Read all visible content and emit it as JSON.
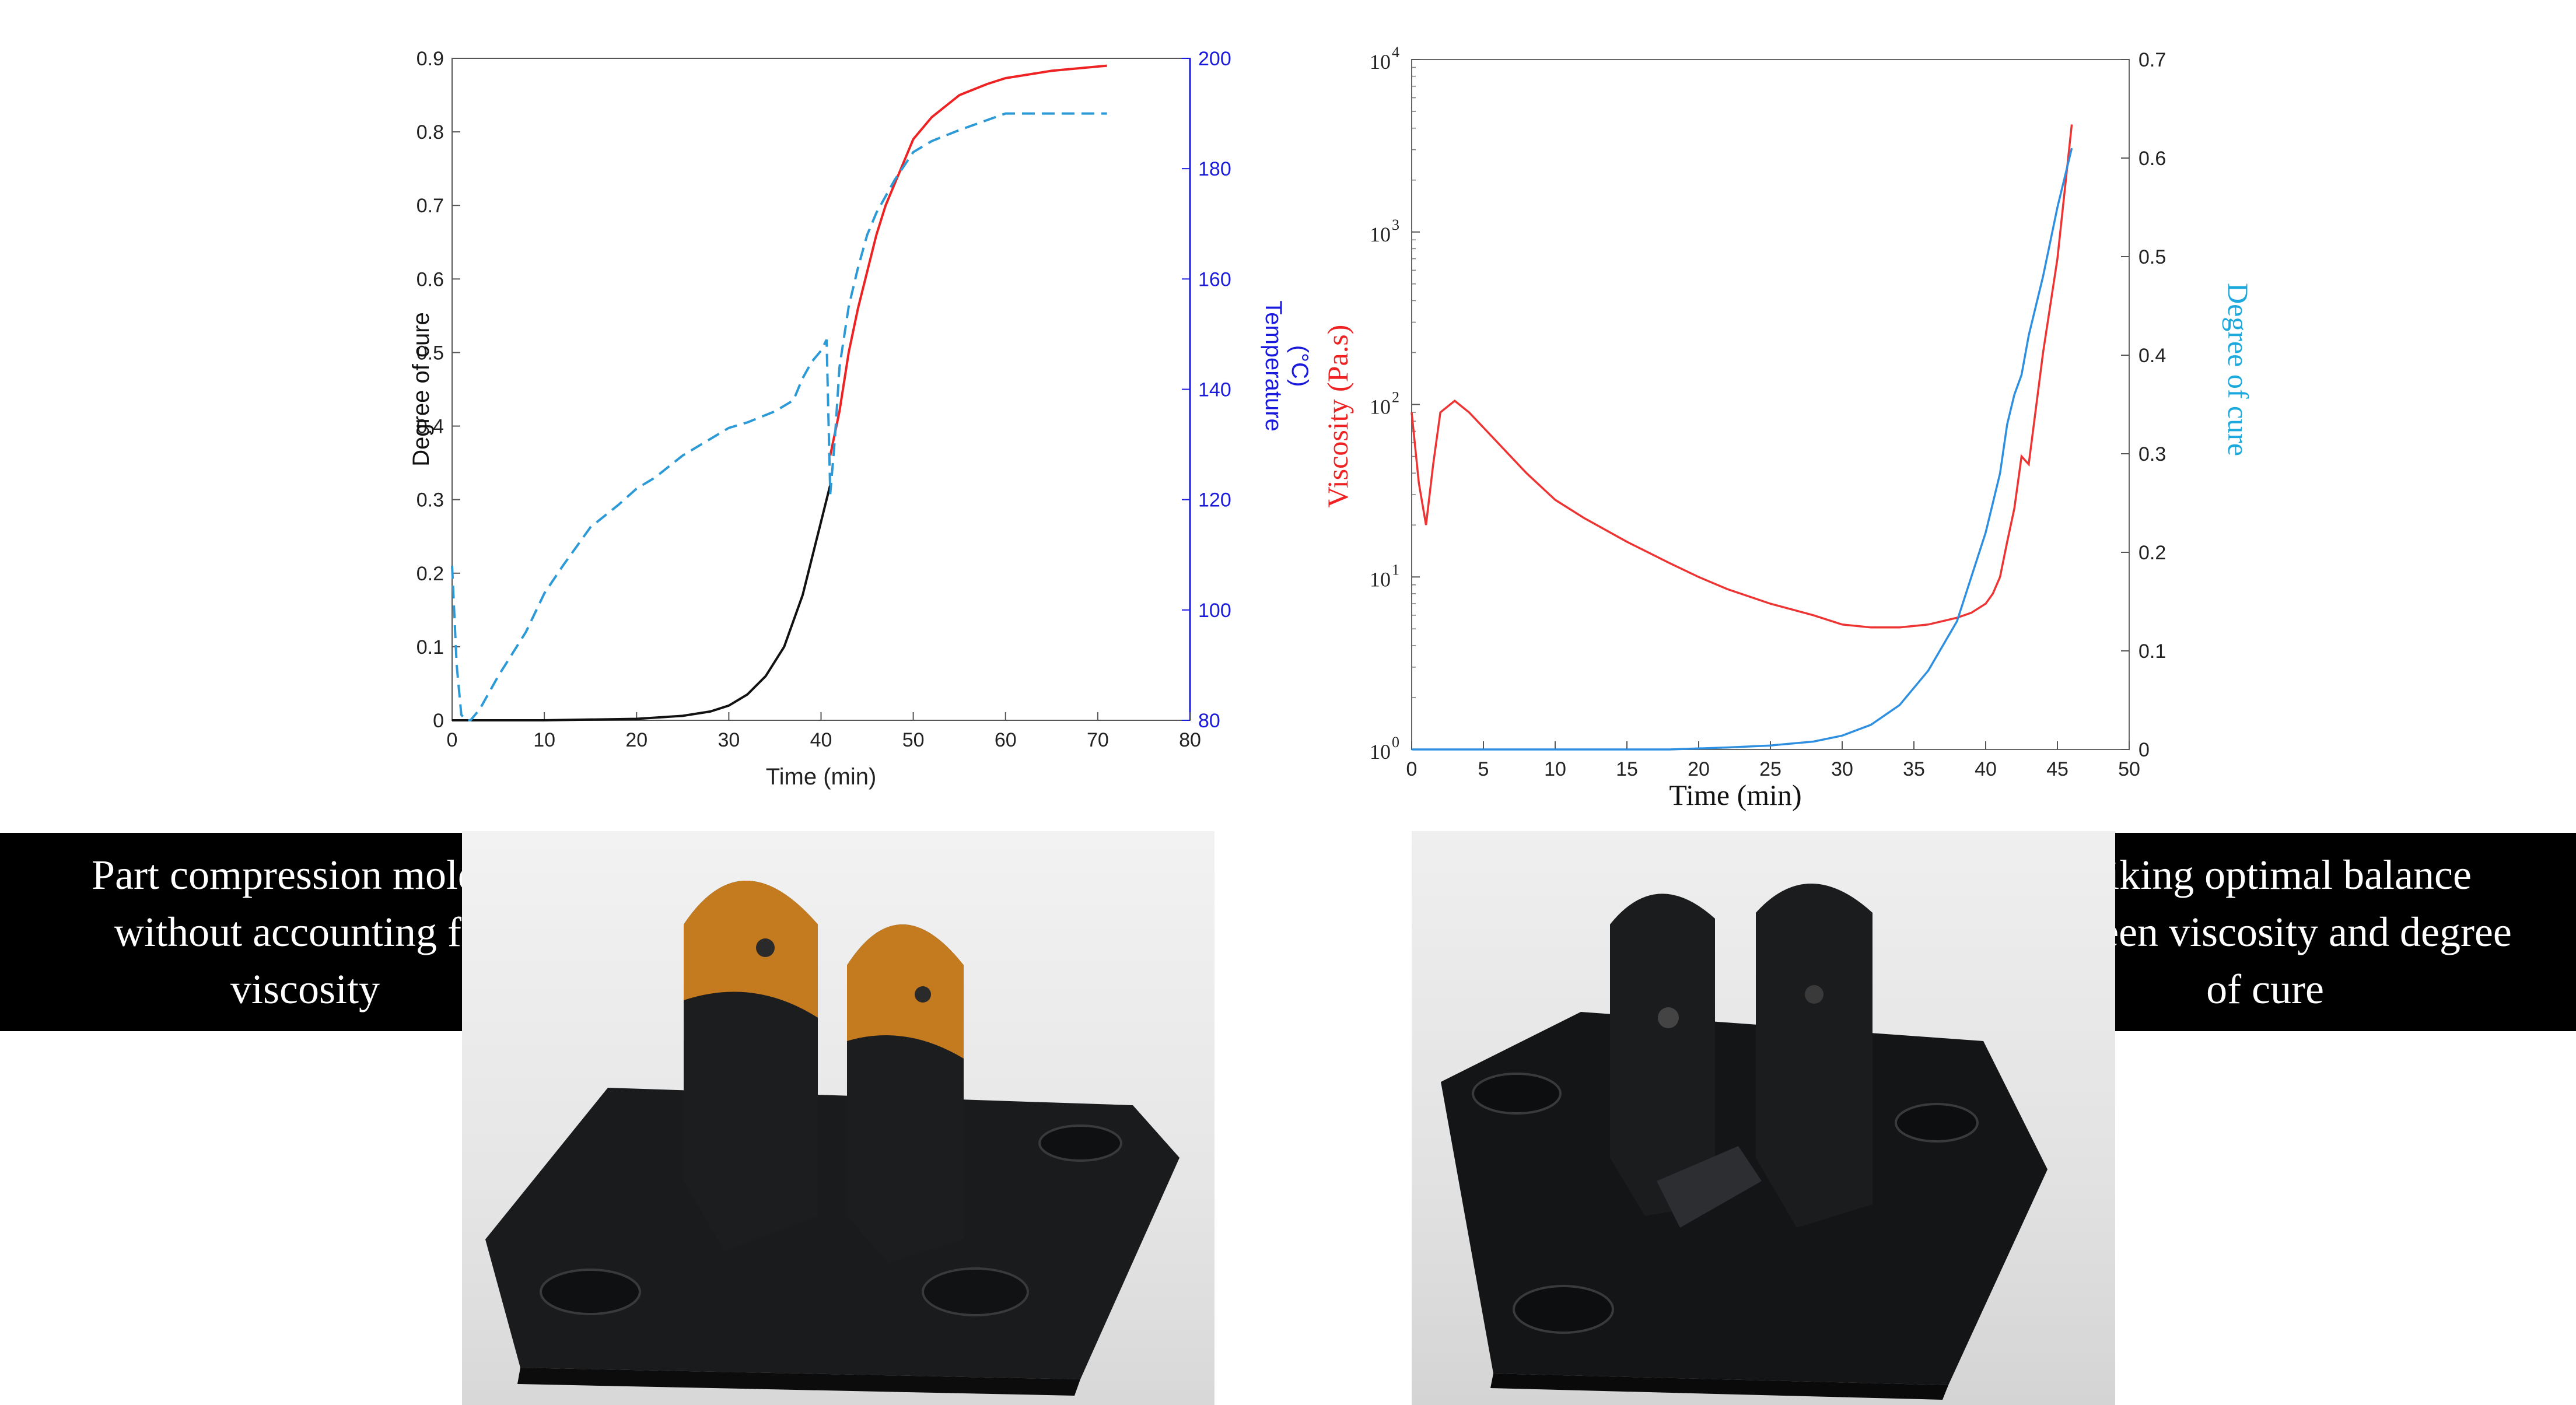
{
  "chart_data": [
    {
      "type": "line",
      "xlabel": "Time (min)",
      "ylabel_left": "Degree of cure",
      "ylabel_right": "Temperature\n(°C)",
      "xlim": [
        0,
        80
      ],
      "ylim_left": [
        0,
        0.9
      ],
      "ylim_right": [
        80,
        200
      ],
      "x_ticks": [
        0,
        10,
        20,
        30,
        40,
        50,
        60,
        70,
        80
      ],
      "y_left_ticks": [
        0,
        0.1,
        0.2,
        0.3,
        0.4,
        0.5,
        0.6,
        0.7,
        0.8,
        0.9
      ],
      "y_right_ticks": [
        80,
        100,
        120,
        140,
        160,
        180,
        200
      ],
      "colors": {
        "cure_pre": "#111111",
        "cure_post": "#ee2222",
        "temperature": "#2b9ad6",
        "right_axis": "#1a1adf"
      },
      "series": [
        {
          "axis": "left",
          "style": "solid",
          "color_key": "cure_pre",
          "x": [
            0,
            10,
            20,
            25,
            28,
            30,
            32,
            34,
            36,
            38,
            40,
            41
          ],
          "y": [
            0,
            0,
            0.002,
            0.006,
            0.012,
            0.02,
            0.035,
            0.06,
            0.1,
            0.17,
            0.27,
            0.32
          ]
        },
        {
          "axis": "left",
          "style": "solid",
          "color_key": "cure_post",
          "x": [
            41,
            42,
            43,
            44,
            45,
            46,
            47,
            48,
            49,
            50,
            52,
            55,
            58,
            60,
            65,
            71
          ],
          "y": [
            0.36,
            0.42,
            0.5,
            0.56,
            0.61,
            0.66,
            0.7,
            0.73,
            0.76,
            0.79,
            0.82,
            0.85,
            0.865,
            0.873,
            0.883,
            0.89
          ]
        },
        {
          "axis": "right",
          "style": "dashed",
          "color_key": "temperature",
          "x": [
            0,
            0.5,
            1,
            1.5,
            2,
            3,
            5,
            8,
            10,
            12,
            15,
            18,
            20,
            22,
            25,
            28,
            30,
            32,
            35,
            37,
            38,
            39,
            40,
            40.6,
            41,
            41.5,
            42,
            43,
            44,
            45,
            46,
            48,
            50,
            52,
            55,
            60,
            65,
            71
          ],
          "y": [
            108,
            90,
            81,
            80,
            80,
            82,
            88,
            96,
            103,
            108,
            115,
            119,
            122,
            124,
            128,
            131,
            133,
            134,
            136,
            138,
            142,
            145,
            147,
            149,
            121,
            131,
            144,
            155,
            162,
            168,
            172,
            178,
            183,
            185,
            187,
            190,
            190,
            190
          ]
        }
      ]
    },
    {
      "type": "line",
      "xlabel": "Time (min)",
      "ylabel_left": "Viscosity (Pa.s)",
      "ylabel_right": "Degree of cure",
      "xlim": [
        0,
        50
      ],
      "ylim_left": [
        1,
        10000
      ],
      "yscale_left": "log",
      "ylim_right": [
        0,
        0.7
      ],
      "x_ticks": [
        0,
        5,
        10,
        15,
        20,
        25,
        30,
        35,
        40,
        45,
        50
      ],
      "y_left_tick_bases": [
        "10",
        "10",
        "10",
        "10",
        "10"
      ],
      "y_left_tick_exps": [
        "0",
        "1",
        "2",
        "3",
        "4"
      ],
      "y_right_ticks": [
        0,
        0.1,
        0.2,
        0.3,
        0.4,
        0.5,
        0.6,
        0.7
      ],
      "colors": {
        "viscosity": "#ee3333",
        "cure": "#2e8fe0",
        "right_axis_label": "#1ba8dc",
        "left_axis_label": "#ee2222"
      },
      "series": [
        {
          "axis": "left",
          "color_key": "viscosity",
          "x": [
            0,
            0.5,
            1,
            1.5,
            2,
            3,
            4,
            6,
            8,
            10,
            12,
            15,
            18,
            20,
            22,
            25,
            28,
            30,
            32,
            34,
            36,
            38,
            39,
            40,
            40.5,
            41,
            41.5,
            42,
            42.5,
            43,
            44,
            45,
            46
          ],
          "y": [
            90,
            35,
            20,
            45,
            90,
            105,
            90,
            60,
            40,
            28,
            22,
            16,
            12,
            10,
            8.5,
            7,
            6,
            5.3,
            5.1,
            5.1,
            5.3,
            5.8,
            6.2,
            7,
            8,
            10,
            16,
            25,
            50,
            45,
            200,
            700,
            4200
          ]
        },
        {
          "axis": "right",
          "color_key": "cure",
          "x": [
            0,
            10,
            18,
            20,
            22,
            25,
            28,
            30,
            32,
            34,
            36,
            38,
            40,
            41,
            41.5,
            42,
            42.5,
            43,
            44,
            45,
            46
          ],
          "y": [
            0,
            0,
            0,
            0.001,
            0.002,
            0.004,
            0.008,
            0.014,
            0.025,
            0.045,
            0.08,
            0.13,
            0.22,
            0.28,
            0.33,
            0.36,
            0.38,
            0.42,
            0.48,
            0.55,
            0.61
          ]
        }
      ]
    }
  ],
  "captions": {
    "left": [
      "Part compression molded",
      "without accounting for",
      "viscosity"
    ],
    "right": [
      "Striking optimal balance",
      "between viscosity and degree",
      "of cure"
    ]
  },
  "photos": {
    "left_part_color": "#1a1b1d",
    "left_fin_color": "#c47a1f",
    "right_part_color": "#141517"
  }
}
